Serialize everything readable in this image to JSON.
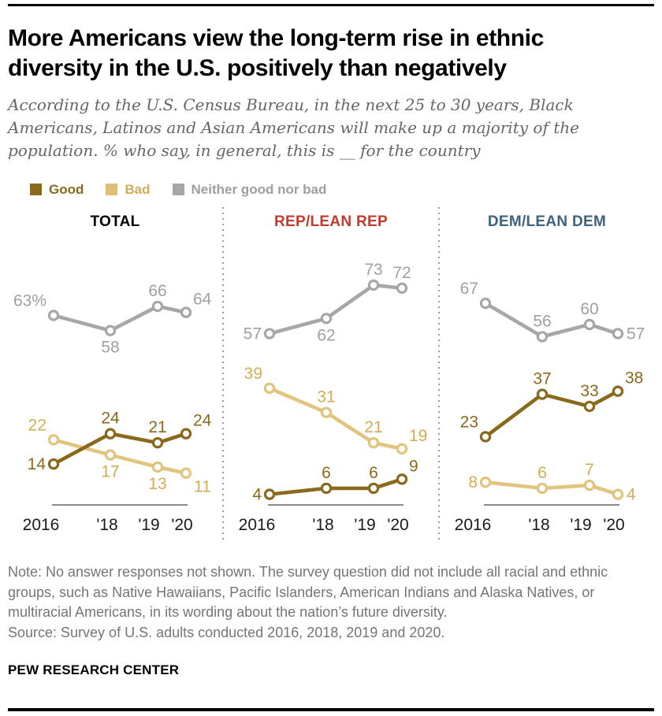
{
  "header": {
    "title": "More Americans view the long-term rise in ethnic diversity in the U.S. positively than negatively",
    "subtitle": "According to the U.S. Census Bureau, in the next 25 to 30 years, Black Americans, Latinos and Asian Americans will make up a majority of the population. % who say, in general, this is __  for the country"
  },
  "legend": {
    "items": [
      {
        "label": "Good",
        "swatch_color": "#8a691c",
        "text_color": "#8a691c"
      },
      {
        "label": "Bad",
        "swatch_color": "#ddc076",
        "text_color": "#d2ad55"
      },
      {
        "label": "Neither good nor bad",
        "swatch_color": "#a6a6a6",
        "text_color": "#9e9e9e"
      }
    ]
  },
  "chart_data": {
    "type": "line",
    "x": [
      "2016",
      "'18",
      "'19",
      "'20"
    ],
    "ylim": [
      0,
      80
    ],
    "grid": false,
    "legend_position": "top-left",
    "panels": [
      {
        "title": "TOTAL",
        "title_color": "#000000",
        "series": [
          {
            "name": "Neither good nor bad",
            "line_color": "#a7a7a7",
            "label_color": "#a0a0a0",
            "values": [
              63,
              58,
              66,
              64
            ],
            "labels": [
              "63%",
              "58",
              "66",
              "64"
            ],
            "label_pos": [
              "left-up",
              "below",
              "above",
              "right-up"
            ]
          },
          {
            "name": "Bad",
            "line_color": "#e1c47e",
            "label_color": "#d2ad55",
            "values": [
              22,
              17,
              13,
              11
            ],
            "labels": [
              "22",
              "17",
              "13",
              "11"
            ],
            "label_pos": [
              "left-up",
              "below",
              "below",
              "right-down"
            ]
          },
          {
            "name": "Good",
            "line_color": "#8a691c",
            "label_color": "#8a691c",
            "values": [
              14,
              24,
              21,
              24
            ],
            "labels": [
              "14",
              "24",
              "21",
              "24"
            ],
            "label_pos": [
              "left",
              "above",
              "above",
              "right-up"
            ]
          }
        ]
      },
      {
        "title": "REP/LEAN REP",
        "title_color": "#c23b2d",
        "series": [
          {
            "name": "Neither good nor bad",
            "line_color": "#a7a7a7",
            "label_color": "#a0a0a0",
            "values": [
              57,
              62,
              73,
              72
            ],
            "labels": [
              "57",
              "62",
              "73",
              "72"
            ],
            "label_pos": [
              "left",
              "below",
              "above",
              "above"
            ]
          },
          {
            "name": "Bad",
            "line_color": "#e1c47e",
            "label_color": "#d2ad55",
            "values": [
              39,
              31,
              21,
              19
            ],
            "labels": [
              "39",
              "31",
              "21",
              "19"
            ],
            "label_pos": [
              "left-up",
              "above",
              "above",
              "right-up"
            ]
          },
          {
            "name": "Good",
            "line_color": "#8a691c",
            "label_color": "#8a691c",
            "values": [
              4,
              6,
              6,
              9
            ],
            "labels": [
              "4",
              "6",
              "6",
              "9"
            ],
            "label_pos": [
              "left",
              "above",
              "above",
              "right-up"
            ]
          }
        ]
      },
      {
        "title": "DEM/LEAN DEM",
        "title_color": "#3d627e",
        "series": [
          {
            "name": "Neither good nor bad",
            "line_color": "#a7a7a7",
            "label_color": "#a0a0a0",
            "values": [
              67,
              56,
              60,
              57
            ],
            "labels": [
              "67",
              "56",
              "60",
              "57"
            ],
            "label_pos": [
              "left-up",
              "above",
              "above",
              "right"
            ]
          },
          {
            "name": "Bad",
            "line_color": "#e1c47e",
            "label_color": "#d2ad55",
            "values": [
              8,
              6,
              7,
              4
            ],
            "labels": [
              "8",
              "6",
              "7",
              "4"
            ],
            "label_pos": [
              "left",
              "above",
              "above",
              "right"
            ]
          },
          {
            "name": "Good",
            "line_color": "#8a691c",
            "label_color": "#8a691c",
            "values": [
              23,
              37,
              33,
              38
            ],
            "labels": [
              "23",
              "37",
              "33",
              "38"
            ],
            "label_pos": [
              "left-up",
              "above",
              "above",
              "right-up"
            ]
          }
        ]
      }
    ]
  },
  "footer": {
    "note": "Note: No answer responses not shown. The survey question did not include all racial and ethnic groups, such as Native Hawaiians, Pacific Islanders, American Indians and Alaska Natives, or multiracial Americans, in its wording about the nation’s future diversity.",
    "source": "Source: Survey of U.S. adults conducted 2016, 2018, 2019 and 2020.",
    "wordmark": "PEW RESEARCH CENTER"
  }
}
